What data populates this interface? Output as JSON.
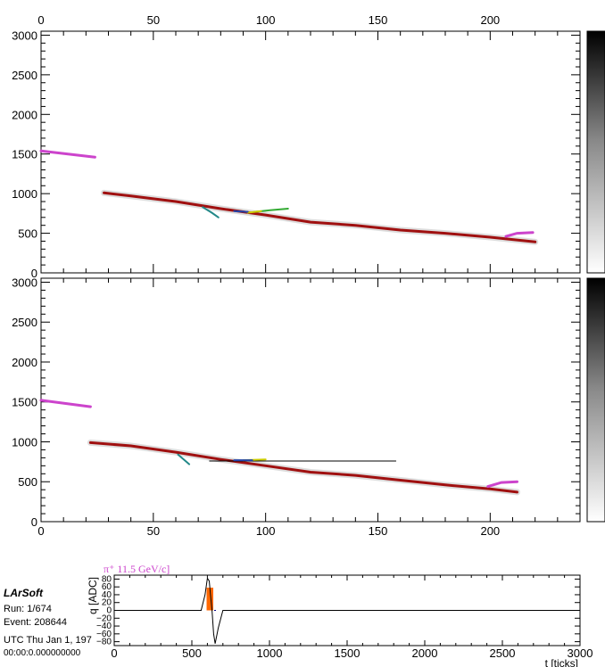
{
  "info": {
    "logo": "LArSoft",
    "run": "Run:   1/674",
    "event": "Event: 208644",
    "utc": "UTC Thu Jan 1, 197",
    "time": "00:00:0.000000000"
  },
  "colors": {
    "track_main": "#a01010",
    "track_pink": "#cc44cc",
    "waveform": "#000000",
    "hit_fill": "#ff6600",
    "baseline": "#000088"
  },
  "chart_data": [
    {
      "type": "scatter",
      "name": "top-view",
      "x_tick_labels": [
        "0",
        "50",
        "100",
        "150",
        "200"
      ],
      "xlim": [
        0,
        240
      ],
      "y_tick_labels": [
        "0",
        "500",
        "1000",
        "1500",
        "2000",
        "2500",
        "3000"
      ],
      "ylim": [
        0,
        3050
      ],
      "tracks": [
        {
          "color": "#cc44cc",
          "points": [
            [
              0,
              1540
            ],
            [
              24,
              1460
            ]
          ]
        },
        {
          "color": "#a01010",
          "points": [
            [
              28,
              1010
            ],
            [
              40,
              970
            ],
            [
              60,
              900
            ],
            [
              80,
              810
            ],
            [
              100,
              730
            ],
            [
              120,
              640
            ],
            [
              140,
              600
            ],
            [
              160,
              540
            ],
            [
              180,
              500
            ],
            [
              200,
              450
            ],
            [
              220,
              390
            ]
          ]
        },
        {
          "color": "#cc44cc",
          "points": [
            [
              207,
              460
            ],
            [
              212,
              500
            ],
            [
              219,
              510
            ]
          ]
        },
        {
          "color": "#33aa33",
          "points": [
            [
              95,
              770
            ],
            [
              102,
              790
            ],
            [
              110,
              810
            ]
          ]
        },
        {
          "color": "#cccc00",
          "points": [
            [
              92,
              760
            ],
            [
              98,
              780
            ]
          ]
        },
        {
          "color": "#228888",
          "points": [
            [
              72,
              830
            ],
            [
              76,
              760
            ],
            [
              79,
              700
            ]
          ]
        },
        {
          "color": "#2244aa",
          "points": [
            [
              86,
              780
            ],
            [
              92,
              770
            ]
          ]
        }
      ]
    },
    {
      "type": "scatter",
      "name": "middle-view",
      "x_tick_labels": [
        "0",
        "50",
        "100",
        "150",
        "200"
      ],
      "xlim": [
        0,
        240
      ],
      "y_tick_labels": [
        "0",
        "500",
        "1000",
        "1500",
        "2000",
        "2500",
        "3000"
      ],
      "ylim": [
        0,
        3050
      ],
      "tracks": [
        {
          "color": "#cc44cc",
          "points": [
            [
              0,
              1520
            ],
            [
              22,
              1440
            ]
          ]
        },
        {
          "color": "#a01010",
          "points": [
            [
              22,
              990
            ],
            [
              40,
              950
            ],
            [
              60,
              870
            ],
            [
              80,
              780
            ],
            [
              100,
              700
            ],
            [
              120,
              620
            ],
            [
              140,
              580
            ],
            [
              160,
              520
            ],
            [
              180,
              460
            ],
            [
              200,
              410
            ],
            [
              212,
              370
            ]
          ]
        },
        {
          "color": "#cc44cc",
          "points": [
            [
              199,
              440
            ],
            [
              205,
              490
            ],
            [
              212,
              500
            ]
          ]
        },
        {
          "color": "#000000",
          "points": [
            [
              75,
              760
            ],
            [
              100,
              760
            ],
            [
              158,
              760
            ]
          ]
        },
        {
          "color": "#cccc00",
          "points": [
            [
              90,
              770
            ],
            [
              100,
              780
            ]
          ]
        },
        {
          "color": "#2244aa",
          "points": [
            [
              86,
              770
            ],
            [
              94,
              770
            ]
          ]
        },
        {
          "color": "#228888",
          "points": [
            [
              61,
              840
            ],
            [
              66,
              720
            ]
          ]
        }
      ]
    },
    {
      "type": "line",
      "name": "waveform",
      "label": "π⁺ 11.5 GeV/c]",
      "ylabel": "q [ADC]",
      "xlabel": "t [ticks]",
      "xlim": [
        0,
        3000
      ],
      "ylim": [
        -90,
        90
      ],
      "x_tick_labels": [
        "0",
        "500",
        "1000",
        "1500",
        "2000",
        "2500",
        "3000"
      ],
      "y_tick_labels": [
        "80",
        "60",
        "40",
        "20",
        "0",
        "−20",
        "−40",
        "−60",
        "−80"
      ],
      "x": [
        0,
        560,
        585,
        600,
        612,
        620,
        630,
        640,
        650,
        670,
        700,
        3000
      ],
      "values": [
        0,
        0,
        40,
        82,
        75,
        40,
        0,
        -60,
        -85,
        -45,
        0,
        0
      ],
      "hit": {
        "x_start": 595,
        "x_end": 638,
        "peak": 58
      }
    }
  ]
}
